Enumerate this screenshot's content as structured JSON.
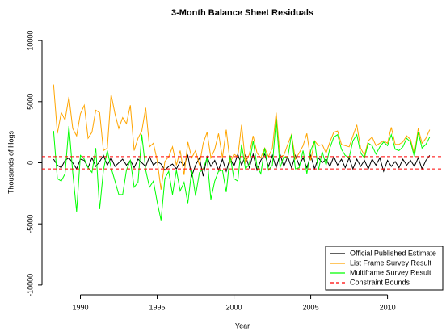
{
  "chart_data": {
    "type": "line",
    "title": "3-Month Balance Sheet Residuals",
    "x_label": "Year",
    "y_label": "Thousands of Hogs",
    "x": [
      1988.25,
      1988.5,
      1988.75,
      1989,
      1989.25,
      1989.5,
      1989.75,
      1990,
      1990.25,
      1990.5,
      1990.75,
      1991,
      1991.25,
      1991.5,
      1991.75,
      1992,
      1992.25,
      1992.5,
      1992.75,
      1993,
      1993.25,
      1993.5,
      1993.75,
      1994,
      1994.25,
      1994.5,
      1994.75,
      1995,
      1995.25,
      1995.5,
      1995.75,
      1996,
      1996.25,
      1996.5,
      1996.75,
      1997,
      1997.25,
      1997.5,
      1997.75,
      1998,
      1998.25,
      1998.5,
      1998.75,
      1999,
      1999.25,
      1999.5,
      1999.75,
      2000,
      2000.25,
      2000.5,
      2000.75,
      2001,
      2001.25,
      2001.5,
      2001.75,
      2002,
      2002.25,
      2002.5,
      2002.75,
      2003,
      2003.25,
      2003.5,
      2003.75,
      2004,
      2004.25,
      2004.5,
      2004.75,
      2005,
      2005.25,
      2005.5,
      2005.75,
      2006,
      2006.25,
      2006.5,
      2006.75,
      2007,
      2007.25,
      2007.5,
      2007.75,
      2008,
      2008.25,
      2008.5,
      2008.75,
      2009,
      2009.25,
      2009.5,
      2009.75,
      2010,
      2010.25,
      2010.5,
      2010.75,
      2011,
      2011.25,
      2011.5,
      2011.75,
      2012,
      2012.25,
      2012.5,
      2012.75
    ],
    "series": [
      {
        "name": "Official Published Estimate",
        "color": "#000000",
        "values": [
          300,
          -200,
          -400,
          200,
          400,
          0,
          -500,
          300,
          200,
          -400,
          400,
          -300,
          100,
          600,
          -200,
          400,
          -300,
          0,
          300,
          -200,
          200,
          -400,
          300,
          0,
          -300,
          500,
          -200,
          100,
          -100,
          -600,
          -300,
          -100,
          -500,
          100,
          -200,
          600,
          -1100,
          -200,
          400,
          -1100,
          500,
          -300,
          200,
          -600,
          300,
          -700,
          400,
          -300,
          700,
          -200,
          600,
          -400,
          700,
          -600,
          200,
          700,
          -300,
          600,
          -400,
          700,
          -300,
          500,
          -400,
          600,
          -200,
          400,
          -400,
          600,
          -500,
          400,
          0,
          300,
          -300,
          500,
          -200,
          300,
          -400,
          400,
          -500,
          300,
          -300,
          200,
          -500,
          300,
          -200,
          400,
          -700,
          200,
          -300,
          100,
          -400,
          300,
          -200,
          200,
          -300,
          400,
          -500,
          200,
          600
        ]
      },
      {
        "name": "List Frame Survey Result",
        "color": "#ffa500",
        "values": [
          6400,
          2400,
          4100,
          3500,
          5400,
          2800,
          2200,
          4000,
          4700,
          2000,
          2500,
          4300,
          4100,
          1000,
          1200,
          5600,
          4000,
          2800,
          3700,
          3200,
          4700,
          1000,
          2000,
          2600,
          4500,
          1300,
          1600,
          200,
          -2200,
          100,
          500,
          1300,
          -200,
          1000,
          -1000,
          1700,
          400,
          1000,
          -200,
          1600,
          2500,
          400,
          1100,
          2400,
          400,
          2700,
          0,
          700,
          500,
          3100,
          0,
          700,
          2200,
          800,
          400,
          1200,
          500,
          1200,
          4100,
          500,
          600,
          1500,
          2300,
          300,
          800,
          1400,
          2400,
          200,
          1800,
          1400,
          1500,
          800,
          1700,
          2500,
          2600,
          1500,
          1400,
          1300,
          2200,
          3100,
          1200,
          600,
          1800,
          2100,
          1400,
          1600,
          1800,
          1600,
          2900,
          1500,
          1500,
          1700,
          2200,
          1900,
          700,
          2800,
          1600,
          2000,
          2700
        ]
      },
      {
        "name": "Multiframe Survey Result",
        "color": "#00ff00",
        "values": [
          2600,
          -1300,
          -1500,
          -900,
          3000,
          -800,
          -4000,
          600,
          300,
          -400,
          -800,
          1200,
          -3800,
          -600,
          1000,
          -400,
          -1500,
          -2600,
          -2600,
          -600,
          200,
          -2000,
          -1600,
          2300,
          -600,
          -2000,
          -1500,
          -3200,
          -4700,
          -1300,
          -700,
          -2600,
          -600,
          -2300,
          -1600,
          -3300,
          -600,
          -2700,
          -800,
          -500,
          400,
          -3000,
          -1500,
          -700,
          -600,
          -2400,
          600,
          -1300,
          -1500,
          1500,
          -500,
          -100,
          1800,
          -300,
          -900,
          1200,
          -600,
          -200,
          3600,
          -400,
          500,
          400,
          2300,
          -500,
          -400,
          1000,
          -900,
          1000,
          1800,
          -600,
          900,
          -200,
          1200,
          2100,
          2300,
          1100,
          600,
          400,
          1800,
          2300,
          800,
          400,
          1600,
          1400,
          700,
          1300,
          1700,
          1400,
          2300,
          1100,
          1000,
          1300,
          2000,
          1700,
          500,
          2500,
          1200,
          1500,
          2100
        ]
      }
    ],
    "bounds": {
      "name": "Constraint Bounds",
      "color": "#ff0000",
      "values": [
        500,
        -500
      ]
    },
    "xlim": [
      1987.5,
      2013.6
    ],
    "xticks": [
      1990,
      1995,
      2000,
      2005,
      2010
    ],
    "ylim": [
      -10800,
      10800
    ],
    "yticks": [
      -10000,
      -5000,
      0,
      5000,
      10000
    ],
    "legend": "bottom-right"
  }
}
